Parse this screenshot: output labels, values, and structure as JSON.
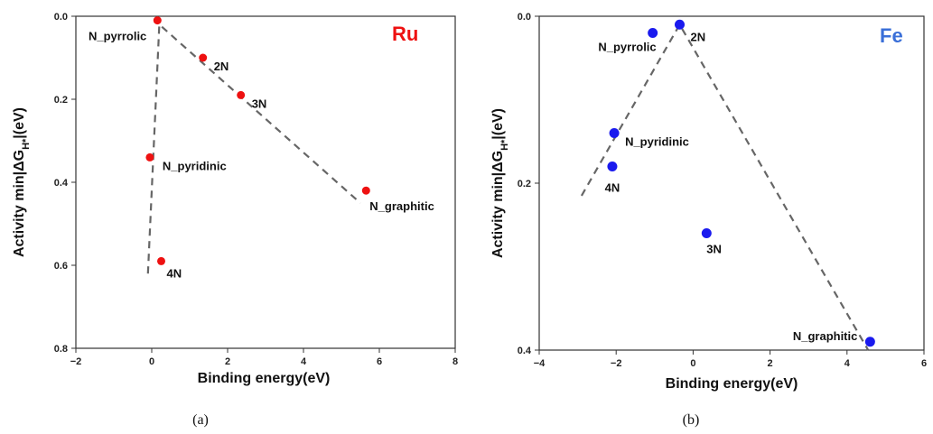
{
  "chart_data": [
    {
      "type": "scatter",
      "element_label": "Ru",
      "caption": "(a)",
      "xlabel": "Binding  energy(eV)",
      "ylabel": "Activity min|ΔG",
      "ylabel_sub": "H*",
      "ylabel_tail": "|(eV)",
      "xlim": [
        -2,
        8
      ],
      "ylim": [
        0.0,
        0.8
      ],
      "y_inverted": true,
      "xticks": [
        -2,
        0,
        2,
        4,
        6,
        8
      ],
      "yticks": [
        "0.0",
        "0.2",
        "0.4",
        "0.6",
        "0.8"
      ],
      "colors": {
        "points": "#ee1111",
        "label": "#ee1111",
        "fit": "#666666"
      },
      "points": [
        {
          "label": "N_pyrrolic",
          "x": 0.15,
          "y": 0.01
        },
        {
          "label": "2N",
          "x": 1.35,
          "y": 0.1
        },
        {
          "label": "3N",
          "x": 2.35,
          "y": 0.19
        },
        {
          "label": "N_pyridinic",
          "x": -0.05,
          "y": 0.34
        },
        {
          "label": "N_graphitic",
          "x": 5.65,
          "y": 0.42
        },
        {
          "label": "4N",
          "x": 0.25,
          "y": 0.59
        }
      ],
      "fit_line": [
        [
          -0.1,
          0.62
        ],
        [
          0.2,
          0.02
        ],
        [
          5.5,
          0.45
        ]
      ]
    },
    {
      "type": "scatter",
      "element_label": "Fe",
      "caption": "(b)",
      "xlabel": "Binding  energy(eV)",
      "ylabel": "Activity min|ΔG",
      "ylabel_sub": "H*",
      "ylabel_tail": "|(eV)",
      "xlim": [
        -4,
        6
      ],
      "ylim": [
        0.0,
        0.4
      ],
      "y_inverted": true,
      "xticks": [
        -4,
        -2,
        0,
        2,
        4,
        6
      ],
      "yticks": [
        "0.0",
        "0.2",
        "0.4"
      ],
      "colors": {
        "points": "#1a1aee",
        "label": "#3a6fd8",
        "fit": "#666666"
      },
      "points": [
        {
          "label": "2N",
          "x": -0.35,
          "y": 0.01
        },
        {
          "label": "N_pyrrolic",
          "x": -1.05,
          "y": 0.02
        },
        {
          "label": "N_pyridinic",
          "x": -2.05,
          "y": 0.14
        },
        {
          "label": "4N",
          "x": -2.1,
          "y": 0.18
        },
        {
          "label": "3N",
          "x": 0.35,
          "y": 0.26
        },
        {
          "label": "N_graphitic",
          "x": 4.6,
          "y": 0.39
        }
      ],
      "fit_line": [
        [
          -2.9,
          0.215
        ],
        [
          -0.35,
          0.01
        ],
        [
          4.55,
          0.4
        ]
      ]
    }
  ]
}
